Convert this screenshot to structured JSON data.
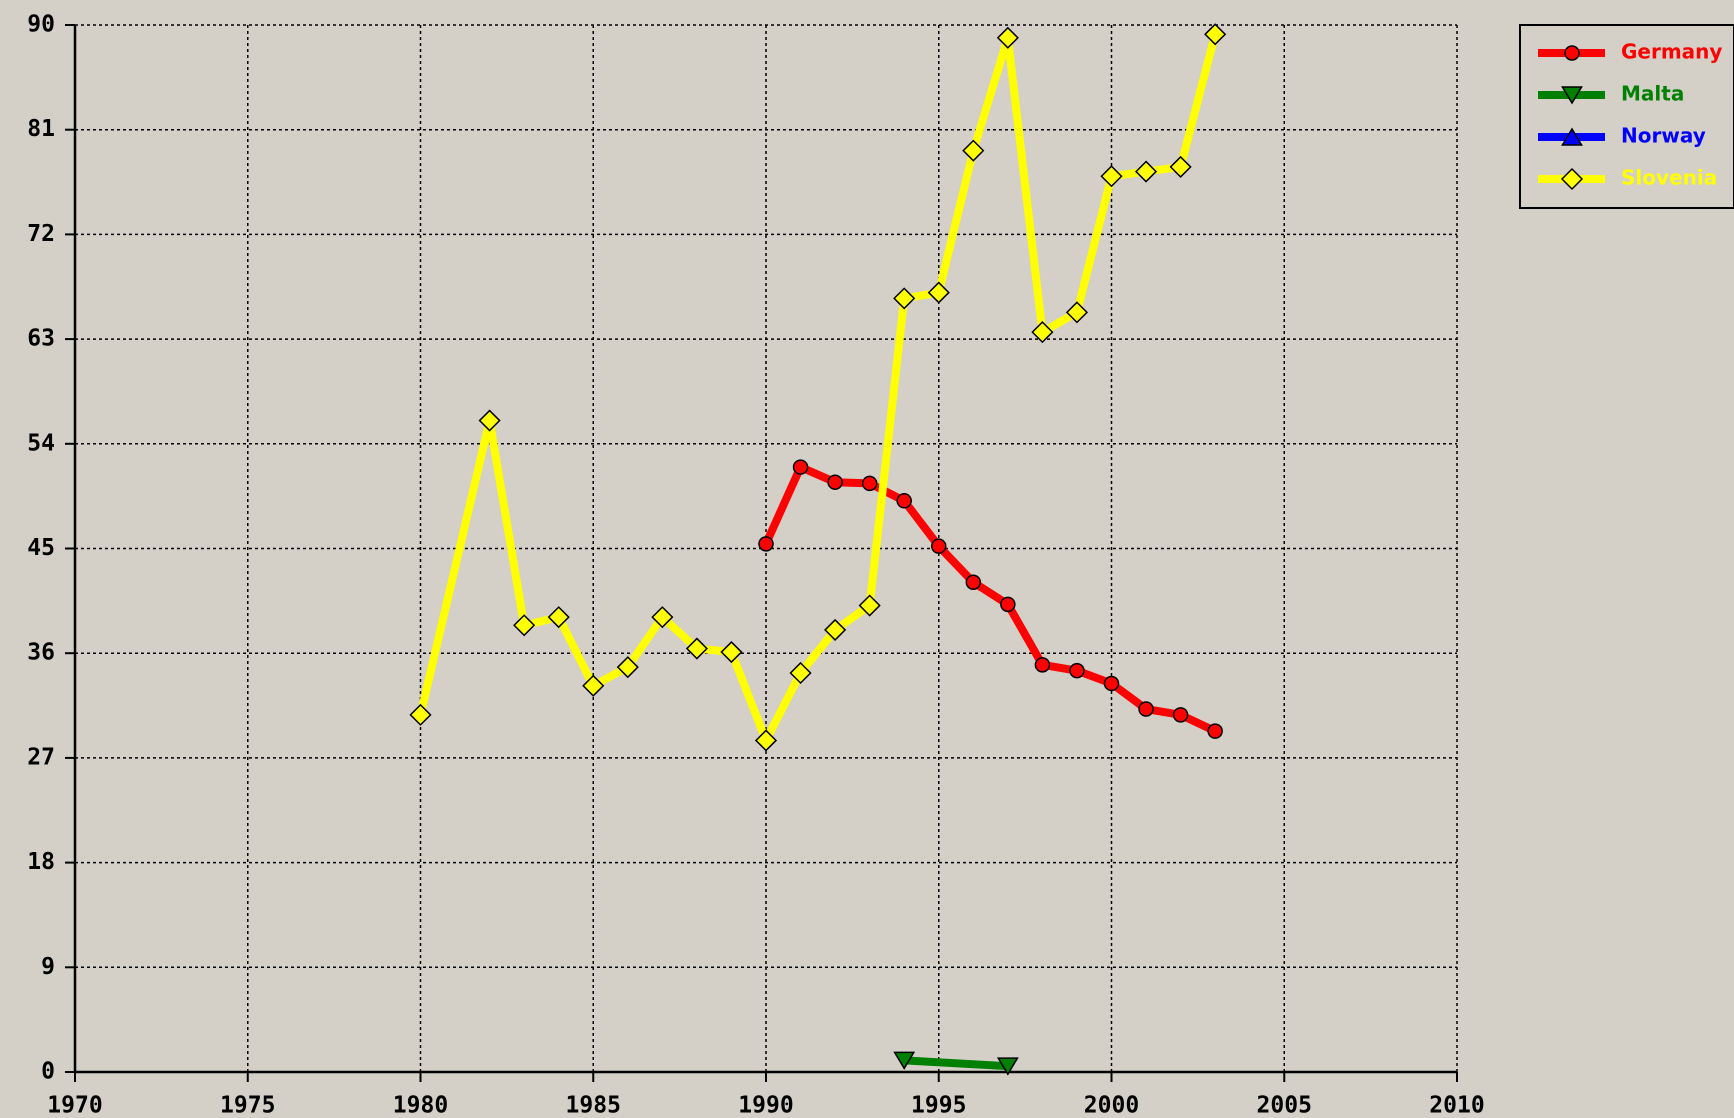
{
  "chart_data": {
    "type": "line",
    "xlim": [
      1970,
      2010
    ],
    "xticks": [
      1970,
      1975,
      1980,
      1985,
      1990,
      1995,
      2000,
      2005,
      2010
    ],
    "ylim": [
      0,
      90
    ],
    "yticks": [
      0,
      9,
      18,
      27,
      36,
      45,
      54,
      63,
      72,
      81,
      90
    ],
    "grid": true,
    "legend": "upper right",
    "series": [
      {
        "name": "Germany",
        "color": "#ff0000",
        "marker": "circle",
        "x": [
          1990,
          1991,
          1992,
          1993,
          1994,
          1995,
          1996,
          1997,
          1998,
          1999,
          2000,
          2001,
          2002,
          2003
        ],
        "values": [
          45.4,
          52.0,
          50.7,
          50.6,
          49.1,
          45.2,
          42.1,
          40.2,
          35.0,
          34.5,
          33.4,
          31.2,
          30.7,
          29.3
        ]
      },
      {
        "name": "Malta",
        "color": "#008000",
        "marker": "triangle-down",
        "x": [
          1994,
          1997
        ],
        "values": [
          1.0,
          0.5
        ]
      },
      {
        "name": "Norway",
        "color": "#0000ff",
        "marker": "triangle-up",
        "x": [],
        "values": []
      },
      {
        "name": "Slovenia",
        "color": "#ffff00",
        "marker": "diamond",
        "x": [
          1980,
          1982,
          1983,
          1984,
          1985,
          1986,
          1987,
          1988,
          1989,
          1990,
          1991,
          1992,
          1993,
          1994,
          1995,
          1996,
          1997,
          1998,
          1999,
          2000,
          2001,
          2002,
          2003
        ],
        "values": [
          30.7,
          56.0,
          38.4,
          39.1,
          33.2,
          34.8,
          39.1,
          36.4,
          36.1,
          28.5,
          34.3,
          38.0,
          40.1,
          66.5,
          67.0,
          79.2,
          88.9,
          63.6,
          65.3,
          77.0,
          77.4,
          77.8,
          89.2
        ]
      }
    ]
  }
}
